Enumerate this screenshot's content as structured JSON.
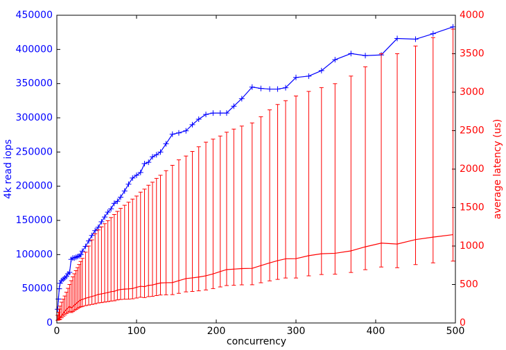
{
  "chart_data": {
    "type": "line",
    "xlabel": "concurrency",
    "ylabel": "4k read iops",
    "y2label": "average latency (us)",
    "x": [
      1,
      2,
      3,
      4,
      6,
      8,
      10,
      12,
      14,
      16,
      18,
      20,
      22,
      24,
      26,
      28,
      30,
      32,
      36,
      40,
      44,
      48,
      52,
      56,
      60,
      64,
      68,
      72,
      76,
      80,
      85,
      90,
      95,
      100,
      105,
      110,
      115,
      120,
      125,
      130,
      137,
      145,
      153,
      162,
      170,
      178,
      187,
      196,
      205,
      213,
      222,
      232,
      245,
      256,
      267,
      277,
      287,
      300,
      316,
      332,
      349,
      369,
      387,
      407,
      427,
      450,
      472,
      497
    ],
    "series": [
      {
        "color": "#0000ff",
        "marker": "+",
        "values": [
          20000,
          35000,
          50000,
          58000,
          62000,
          64000,
          66000,
          68000,
          72000,
          74000,
          93000,
          95000,
          95000,
          96000,
          97000,
          98000,
          100000,
          105000,
          112000,
          120000,
          128000,
          135000,
          140000,
          148000,
          155000,
          162000,
          167000,
          175000,
          178000,
          184000,
          193000,
          203000,
          212000,
          216000,
          220000,
          233000,
          235000,
          243000,
          246000,
          250000,
          262000,
          276000,
          278000,
          281000,
          290000,
          298000,
          305000,
          307000,
          307000,
          307000,
          317000,
          328000,
          345000,
          343000,
          342000,
          342000,
          344000,
          359000,
          361000,
          369000,
          385000,
          394000,
          391000,
          392000,
          416000,
          415000,
          423000,
          433000
        ]
      },
      {
        "color": "#ff0000",
        "axis": "y2",
        "values": [
          50,
          57,
          60,
          69,
          97,
          125,
          152,
          176,
          194,
          216,
          194,
          211,
          232,
          250,
          268,
          286,
          300,
          305,
          321,
          333,
          344,
          356,
          371,
          378,
          387,
          395,
          407,
          411,
          427,
          435,
          440,
          443,
          448,
          463,
          477,
          472,
          489,
          494,
          508,
          520,
          523,
          525,
          550,
          577,
          586,
          597,
          613,
          638,
          668,
          694,
          700,
          707,
          710,
          746,
          781,
          810,
          834,
          836,
          875,
          900,
          906,
          937,
          990,
          1038,
          1026,
          1084,
          1116,
          1148
        ],
        "low": [
          35,
          40,
          42,
          48,
          68,
          88,
          106,
          123,
          136,
          151,
          136,
          148,
          162,
          175,
          188,
          200,
          210,
          214,
          225,
          233,
          241,
          249,
          260,
          265,
          271,
          277,
          285,
          288,
          299,
          305,
          308,
          310,
          314,
          324,
          334,
          330,
          342,
          346,
          356,
          364,
          366,
          368,
          385,
          404,
          410,
          418,
          429,
          447,
          468,
          486,
          490,
          495,
          497,
          522,
          547,
          567,
          584,
          585,
          613,
          630,
          634,
          656,
          693,
          727,
          718,
          759,
          781,
          804
        ],
        "high": [
          100,
          140,
          180,
          220,
          270,
          310,
          350,
          400,
          450,
          500,
          550,
          600,
          640,
          680,
          720,
          760,
          800,
          840,
          920,
          1000,
          1080,
          1160,
          1210,
          1250,
          1290,
          1330,
          1370,
          1410,
          1450,
          1490,
          1530,
          1570,
          1610,
          1650,
          1700,
          1740,
          1790,
          1830,
          1880,
          1920,
          1980,
          2050,
          2120,
          2170,
          2230,
          2290,
          2350,
          2390,
          2430,
          2480,
          2520,
          2560,
          2600,
          2680,
          2770,
          2840,
          2890,
          2950,
          3010,
          3060,
          3110,
          3210,
          3330,
          3500,
          3500,
          3600,
          3710,
          3820
        ]
      }
    ],
    "xlim": [
      0,
      500
    ],
    "xticks": [
      0,
      100,
      200,
      300,
      400,
      500
    ],
    "ylim": [
      0,
      450000
    ],
    "yticks": [
      0,
      50000,
      100000,
      150000,
      200000,
      250000,
      300000,
      350000,
      400000,
      450000
    ],
    "y2lim": [
      0,
      4000
    ],
    "y2ticks": [
      0,
      500,
      1000,
      1500,
      2000,
      2500,
      3000,
      3500,
      4000
    ],
    "grid": false
  }
}
